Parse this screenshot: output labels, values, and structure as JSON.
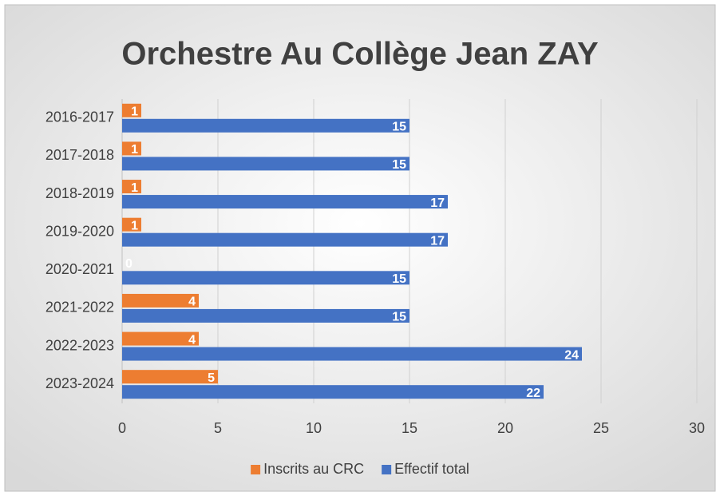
{
  "chart_data": {
    "type": "hbar",
    "title": "Orchestre Au Collège Jean ZAY",
    "categories": [
      "2016-2017",
      "2017-2018",
      "2018-2019",
      "2019-2020",
      "2020-2021",
      "2021-2022",
      "2022-2023",
      "2023-2024"
    ],
    "series": [
      {
        "name": "Inscrits au CRC",
        "color": "#ed7d31",
        "values": [
          1,
          1,
          1,
          1,
          0,
          4,
          4,
          5
        ]
      },
      {
        "name": "Effectif total",
        "color": "#4472c4",
        "values": [
          15,
          15,
          17,
          17,
          15,
          15,
          24,
          22
        ]
      }
    ],
    "xlim": [
      0,
      30
    ],
    "xticks": [
      0,
      5,
      10,
      15,
      20,
      25,
      30
    ],
    "grid": true,
    "legend": "bottom"
  }
}
